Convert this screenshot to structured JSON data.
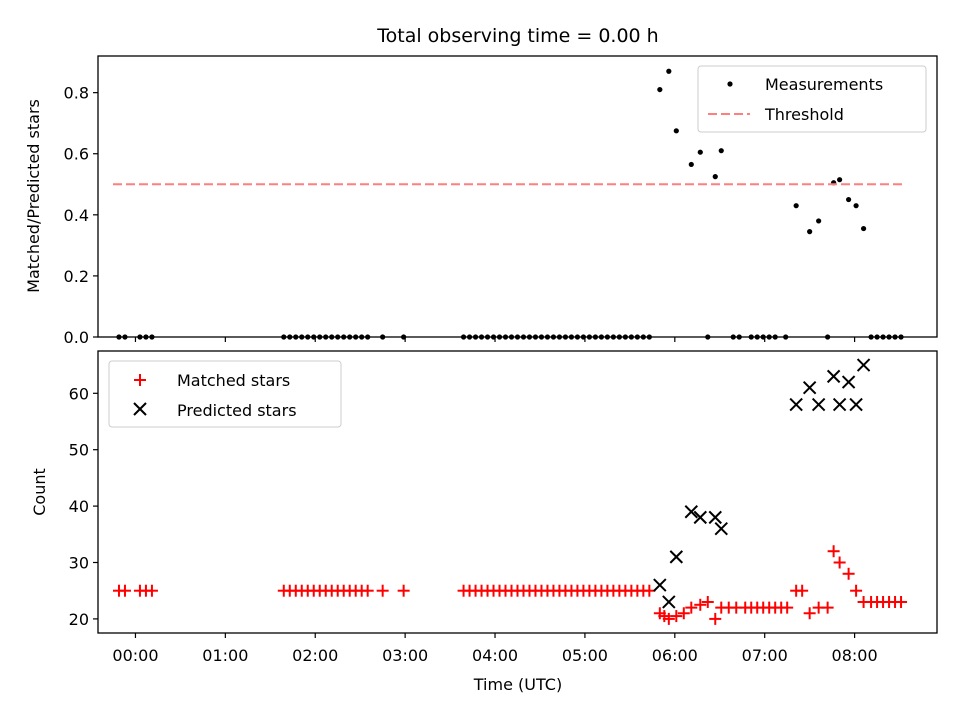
{
  "chart_data": [
    {
      "type": "scatter",
      "title": "Total observing time = 0.00 h",
      "xlabel": "",
      "ylabel": "Matched/Predicted stars",
      "ylim": [
        0,
        0.92
      ],
      "xlim": [
        "23:35",
        "08:55"
      ],
      "yticks": [
        "0.0",
        "0.2",
        "0.4",
        "0.6",
        "0.8"
      ],
      "ytick_values": [
        0,
        0.2,
        0.4,
        0.6,
        0.8
      ],
      "legend_position": "top-right",
      "series": [
        {
          "name": "Measurements",
          "marker": "dot",
          "color": "#000000",
          "points": [
            [
              "23:49",
              0
            ],
            [
              "23:53",
              0
            ],
            [
              "00:03",
              0
            ],
            [
              "00:07",
              0
            ],
            [
              "00:11",
              0
            ],
            [
              "01:39",
              0
            ],
            [
              "01:43",
              0
            ],
            [
              "01:47",
              0
            ],
            [
              "01:51",
              0
            ],
            [
              "01:55",
              0
            ],
            [
              "01:59",
              0
            ],
            [
              "02:03",
              0
            ],
            [
              "02:07",
              0
            ],
            [
              "02:11",
              0
            ],
            [
              "02:15",
              0
            ],
            [
              "02:19",
              0
            ],
            [
              "02:23",
              0
            ],
            [
              "02:27",
              0
            ],
            [
              "02:31",
              0
            ],
            [
              "02:35",
              0
            ],
            [
              "02:45",
              0
            ],
            [
              "02:59",
              0
            ],
            [
              "03:39",
              0
            ],
            [
              "03:43",
              0
            ],
            [
              "03:47",
              0
            ],
            [
              "03:51",
              0
            ],
            [
              "03:55",
              0
            ],
            [
              "03:59",
              0
            ],
            [
              "04:03",
              0
            ],
            [
              "04:07",
              0
            ],
            [
              "04:11",
              0
            ],
            [
              "04:15",
              0
            ],
            [
              "04:19",
              0
            ],
            [
              "04:23",
              0
            ],
            [
              "04:27",
              0
            ],
            [
              "04:31",
              0
            ],
            [
              "04:35",
              0
            ],
            [
              "04:39",
              0
            ],
            [
              "04:43",
              0
            ],
            [
              "04:47",
              0
            ],
            [
              "04:51",
              0
            ],
            [
              "04:55",
              0
            ],
            [
              "04:59",
              0
            ],
            [
              "05:03",
              0
            ],
            [
              "05:07",
              0
            ],
            [
              "05:11",
              0
            ],
            [
              "05:15",
              0
            ],
            [
              "05:19",
              0
            ],
            [
              "05:23",
              0
            ],
            [
              "05:27",
              0
            ],
            [
              "05:31",
              0
            ],
            [
              "05:35",
              0
            ],
            [
              "05:39",
              0
            ],
            [
              "05:43",
              0
            ],
            [
              "05:50",
              0.81
            ],
            [
              "05:56",
              0.87
            ],
            [
              "06:01",
              0.675
            ],
            [
              "06:11",
              0.565
            ],
            [
              "06:17",
              0.605
            ],
            [
              "06:22",
              0
            ],
            [
              "06:27",
              0.525
            ],
            [
              "06:31",
              0.61
            ],
            [
              "06:39",
              0
            ],
            [
              "06:43",
              0
            ],
            [
              "06:51",
              0
            ],
            [
              "06:55",
              0
            ],
            [
              "06:59",
              0
            ],
            [
              "07:03",
              0
            ],
            [
              "07:07",
              0
            ],
            [
              "07:14",
              0
            ],
            [
              "07:21",
              0.43
            ],
            [
              "07:30",
              0.345
            ],
            [
              "07:36",
              0.38
            ],
            [
              "07:42",
              0
            ],
            [
              "07:46",
              0.505
            ],
            [
              "07:50",
              0.515
            ],
            [
              "07:56",
              0.45
            ],
            [
              "08:01",
              0.43
            ],
            [
              "08:06",
              0.355
            ],
            [
              "08:11",
              0
            ],
            [
              "08:15",
              0
            ],
            [
              "08:19",
              0
            ],
            [
              "08:23",
              0
            ],
            [
              "08:27",
              0
            ],
            [
              "08:31",
              0
            ]
          ]
        },
        {
          "name": "Threshold",
          "style": "dashed",
          "color": "#ff7f7f",
          "points": [
            [
              "23:45",
              0.5
            ],
            [
              "08:32",
              0.5
            ]
          ]
        }
      ]
    },
    {
      "type": "scatter",
      "title": "",
      "xlabel": "Time (UTC)",
      "ylabel": "Count",
      "ylim": [
        17.5,
        67.5
      ],
      "xlim": [
        "23:35",
        "08:55"
      ],
      "yticks": [
        "20",
        "30",
        "40",
        "50",
        "60"
      ],
      "ytick_values": [
        20,
        30,
        40,
        50,
        60
      ],
      "xticks": [
        "00:00",
        "01:00",
        "02:00",
        "03:00",
        "04:00",
        "05:00",
        "06:00",
        "07:00",
        "08:00"
      ],
      "legend_position": "top-left",
      "series": [
        {
          "name": "Matched stars",
          "marker": "plus",
          "color": "#ff0000",
          "points": [
            [
              "23:49",
              25
            ],
            [
              "23:53",
              25
            ],
            [
              "00:03",
              25
            ],
            [
              "00:07",
              25
            ],
            [
              "00:11",
              25
            ],
            [
              "01:39",
              25
            ],
            [
              "01:43",
              25
            ],
            [
              "01:47",
              25
            ],
            [
              "01:51",
              25
            ],
            [
              "01:55",
              25
            ],
            [
              "01:59",
              25
            ],
            [
              "02:03",
              25
            ],
            [
              "02:07",
              25
            ],
            [
              "02:11",
              25
            ],
            [
              "02:15",
              25
            ],
            [
              "02:19",
              25
            ],
            [
              "02:23",
              25
            ],
            [
              "02:27",
              25
            ],
            [
              "02:31",
              25
            ],
            [
              "02:35",
              25
            ],
            [
              "02:45",
              25
            ],
            [
              "02:59",
              25
            ],
            [
              "03:39",
              25
            ],
            [
              "03:43",
              25
            ],
            [
              "03:47",
              25
            ],
            [
              "03:51",
              25
            ],
            [
              "03:55",
              25
            ],
            [
              "03:59",
              25
            ],
            [
              "04:03",
              25
            ],
            [
              "04:07",
              25
            ],
            [
              "04:11",
              25
            ],
            [
              "04:15",
              25
            ],
            [
              "04:19",
              25
            ],
            [
              "04:23",
              25
            ],
            [
              "04:27",
              25
            ],
            [
              "04:31",
              25
            ],
            [
              "04:35",
              25
            ],
            [
              "04:39",
              25
            ],
            [
              "04:43",
              25
            ],
            [
              "04:47",
              25
            ],
            [
              "04:51",
              25
            ],
            [
              "04:55",
              25
            ],
            [
              "04:59",
              25
            ],
            [
              "05:03",
              25
            ],
            [
              "05:07",
              25
            ],
            [
              "05:11",
              25
            ],
            [
              "05:15",
              25
            ],
            [
              "05:19",
              25
            ],
            [
              "05:23",
              25
            ],
            [
              "05:27",
              25
            ],
            [
              "05:31",
              25
            ],
            [
              "05:35",
              25
            ],
            [
              "05:39",
              25
            ],
            [
              "05:43",
              25
            ],
            [
              "05:50",
              21
            ],
            [
              "05:53",
              20.5
            ],
            [
              "05:56",
              20
            ],
            [
              "06:01",
              20.5
            ],
            [
              "06:06",
              21
            ],
            [
              "06:11",
              22
            ],
            [
              "06:17",
              22.5
            ],
            [
              "06:22",
              23
            ],
            [
              "06:27",
              20
            ],
            [
              "06:31",
              22
            ],
            [
              "06:36",
              22
            ],
            [
              "06:41",
              22
            ],
            [
              "06:47",
              22
            ],
            [
              "06:51",
              22
            ],
            [
              "06:55",
              22
            ],
            [
              "06:59",
              22
            ],
            [
              "07:03",
              22
            ],
            [
              "07:07",
              22
            ],
            [
              "07:11",
              22
            ],
            [
              "07:15",
              22
            ],
            [
              "07:21",
              25
            ],
            [
              "07:25",
              25
            ],
            [
              "07:30",
              21
            ],
            [
              "07:36",
              22
            ],
            [
              "07:42",
              22
            ],
            [
              "07:46",
              32
            ],
            [
              "07:50",
              30
            ],
            [
              "07:56",
              28
            ],
            [
              "08:01",
              25
            ],
            [
              "08:06",
              23
            ],
            [
              "08:11",
              23
            ],
            [
              "08:15",
              23
            ],
            [
              "08:19",
              23
            ],
            [
              "08:23",
              23
            ],
            [
              "08:27",
              23
            ],
            [
              "08:31",
              23
            ]
          ]
        },
        {
          "name": "Predicted stars",
          "marker": "x",
          "color": "#000000",
          "points": [
            [
              "05:50",
              26
            ],
            [
              "05:56",
              23
            ],
            [
              "06:01",
              31
            ],
            [
              "06:11",
              39
            ],
            [
              "06:17",
              38
            ],
            [
              "06:27",
              38
            ],
            [
              "06:31",
              36
            ],
            [
              "07:21",
              58
            ],
            [
              "07:30",
              61
            ],
            [
              "07:36",
              58
            ],
            [
              "07:46",
              63
            ],
            [
              "07:50",
              58
            ],
            [
              "07:56",
              62
            ],
            [
              "08:01",
              58
            ],
            [
              "08:06",
              65
            ]
          ]
        }
      ]
    }
  ]
}
